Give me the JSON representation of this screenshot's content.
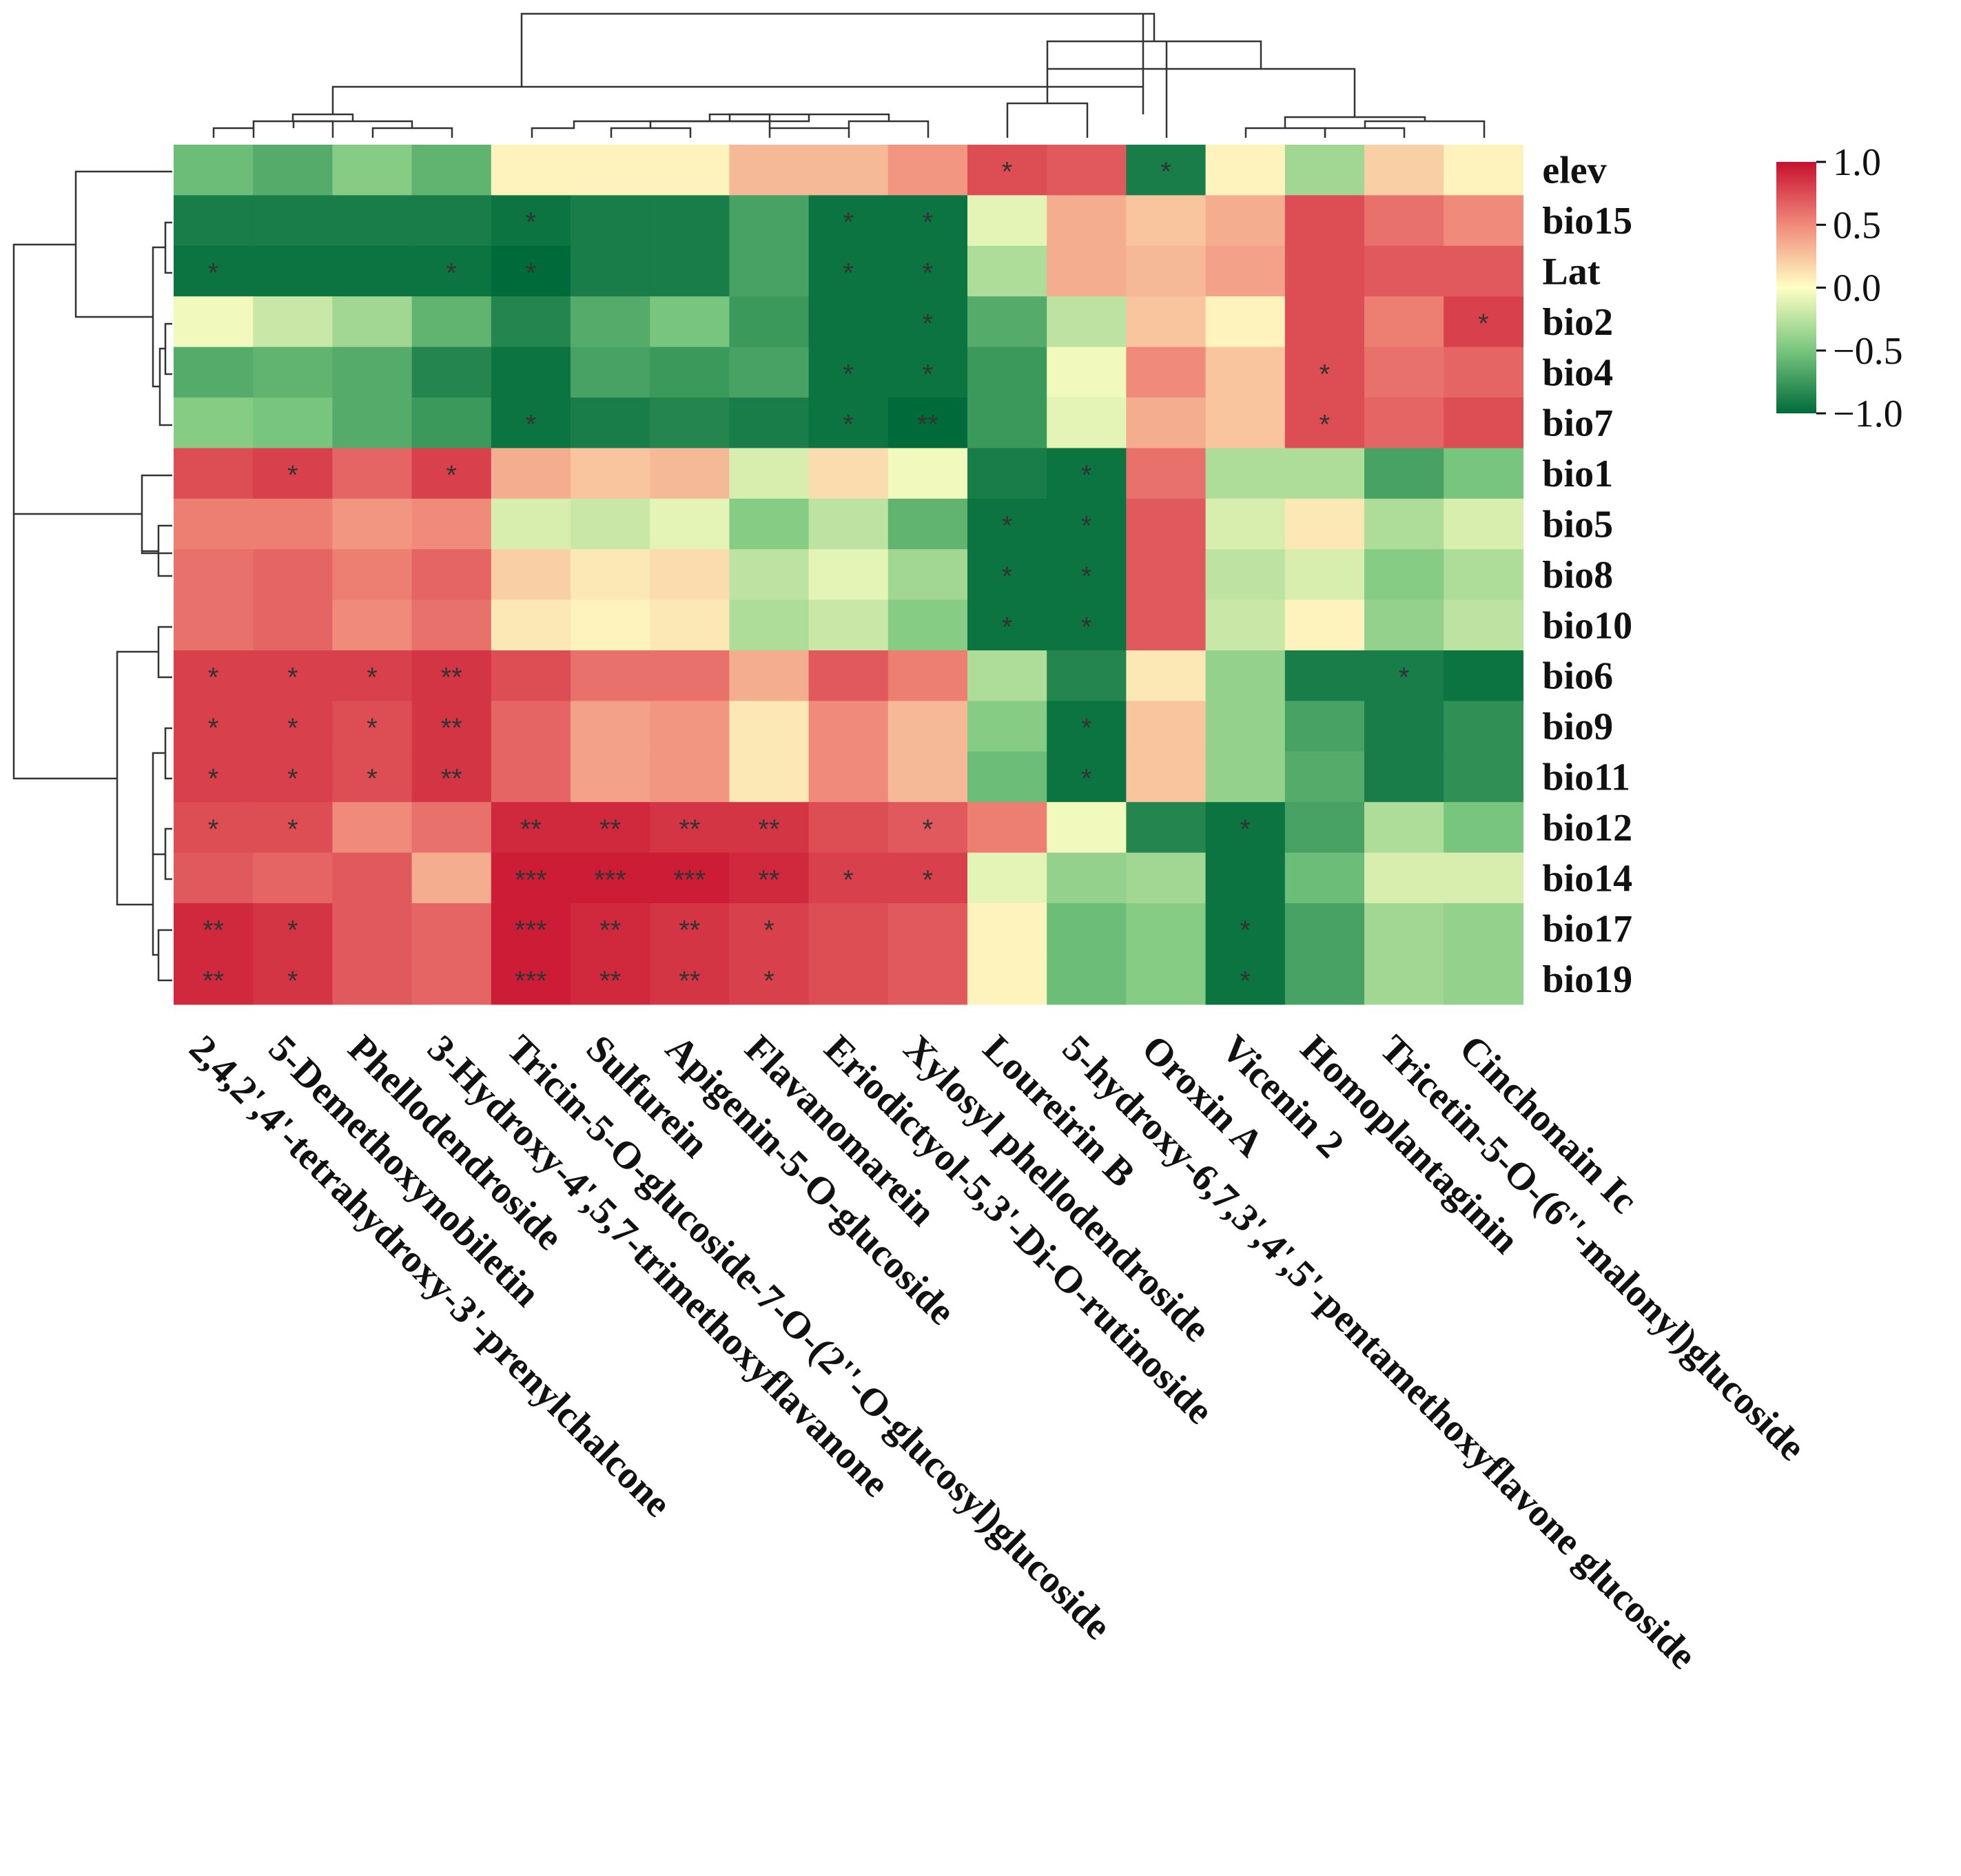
{
  "chart_data": {
    "type": "heatmap",
    "rows": [
      "elev",
      "bio15",
      "Lat",
      "bio2",
      "bio4",
      "bio7",
      "bio1",
      "bio5",
      "bio8",
      "bio10",
      "bio6",
      "bio9",
      "bio11",
      "bio12",
      "bio14",
      "bio17",
      "bio19"
    ],
    "columns": [
      "2,4,2',4'-tetrahydroxy-3'-prenylchalcone",
      "5-Demethoxynobiletin",
      "Phellodendroside",
      "3-Hydroxy-4',5,7-trimethoxyflavanone",
      "Tricin-5-O-glucoside-7-O-(2''-O-glucosyl)glucoside",
      "Sulfurein",
      "Apigenin-5-O-glucoside",
      "Flavanomarein",
      "Eriodictyol-5,3'-Di-O-rutinoside",
      "Xylosyl phellodendroside",
      "Loureirin B",
      "5-hydroxy-6,7,3',4',5'-pentamethoxyflavone glucoside",
      "Oroxin A",
      "Vicenin 2",
      "Homoplantaginin",
      "Tricetin-5-O-(6''-malonyl)glucoside",
      "Cinchonain Ic"
    ],
    "values": [
      [
        -0.55,
        -0.65,
        -0.45,
        -0.6,
        0.05,
        0.05,
        0.05,
        0.3,
        0.3,
        0.45,
        0.75,
        0.7,
        -0.9,
        0.05,
        -0.35,
        0.2,
        0.05
      ],
      [
        -0.9,
        -0.9,
        -0.9,
        -0.9,
        -0.95,
        -0.9,
        -0.9,
        -0.7,
        -0.95,
        -0.95,
        -0.1,
        0.35,
        0.25,
        0.35,
        0.75,
        0.6,
        0.5
      ],
      [
        -0.95,
        -0.95,
        -0.95,
        -0.95,
        -1.0,
        -0.9,
        -0.9,
        -0.7,
        -0.95,
        -0.95,
        -0.3,
        0.35,
        0.3,
        0.4,
        0.75,
        0.7,
        0.7
      ],
      [
        -0.05,
        -0.2,
        -0.35,
        -0.6,
        -0.85,
        -0.65,
        -0.5,
        -0.75,
        -0.95,
        -0.95,
        -0.65,
        -0.25,
        0.25,
        0.05,
        0.75,
        0.55,
        0.8
      ],
      [
        -0.65,
        -0.6,
        -0.65,
        -0.85,
        -0.95,
        -0.7,
        -0.75,
        -0.7,
        -0.95,
        -0.95,
        -0.75,
        -0.05,
        0.5,
        0.25,
        0.75,
        0.6,
        0.65
      ],
      [
        -0.45,
        -0.5,
        -0.65,
        -0.75,
        -0.95,
        -0.9,
        -0.85,
        -0.9,
        -0.95,
        -1.0,
        -0.75,
        -0.1,
        0.35,
        0.25,
        0.75,
        0.65,
        0.75
      ],
      [
        0.75,
        0.8,
        0.65,
        0.8,
        0.35,
        0.25,
        0.3,
        -0.15,
        0.15,
        -0.05,
        -0.9,
        -0.95,
        0.6,
        -0.3,
        -0.3,
        -0.7,
        -0.5
      ],
      [
        0.55,
        0.55,
        0.45,
        0.5,
        -0.15,
        -0.2,
        -0.1,
        -0.45,
        -0.25,
        -0.6,
        -0.95,
        -0.95,
        0.7,
        -0.15,
        0.1,
        -0.3,
        -0.15
      ],
      [
        0.6,
        0.65,
        0.55,
        0.65,
        0.2,
        0.1,
        0.15,
        -0.25,
        -0.1,
        -0.35,
        -0.95,
        -0.95,
        0.7,
        -0.25,
        -0.15,
        -0.45,
        -0.3
      ],
      [
        0.6,
        0.65,
        0.5,
        0.6,
        0.1,
        0.05,
        0.1,
        -0.3,
        -0.2,
        -0.45,
        -0.95,
        -0.95,
        0.7,
        -0.2,
        0.05,
        -0.4,
        -0.25
      ],
      [
        0.8,
        0.8,
        0.8,
        0.85,
        0.75,
        0.6,
        0.6,
        0.35,
        0.7,
        0.55,
        -0.3,
        -0.85,
        0.1,
        -0.4,
        -0.9,
        -0.9,
        -0.95
      ],
      [
        0.8,
        0.8,
        0.75,
        0.85,
        0.65,
        0.4,
        0.45,
        0.1,
        0.5,
        0.3,
        -0.45,
        -0.95,
        0.25,
        -0.4,
        -0.7,
        -0.9,
        -0.8
      ],
      [
        0.8,
        0.8,
        0.75,
        0.85,
        0.65,
        0.4,
        0.45,
        0.1,
        0.5,
        0.3,
        -0.55,
        -0.95,
        0.25,
        -0.4,
        -0.65,
        -0.9,
        -0.8
      ],
      [
        0.75,
        0.75,
        0.5,
        0.6,
        0.9,
        0.9,
        0.85,
        0.85,
        0.75,
        0.7,
        0.55,
        -0.05,
        -0.85,
        -0.95,
        -0.7,
        -0.3,
        -0.5
      ],
      [
        0.7,
        0.65,
        0.7,
        0.35,
        0.95,
        0.95,
        0.95,
        0.9,
        0.8,
        0.8,
        -0.1,
        -0.4,
        -0.35,
        -0.95,
        -0.55,
        -0.15,
        -0.15
      ],
      [
        0.9,
        0.85,
        0.7,
        0.65,
        0.95,
        0.9,
        0.85,
        0.8,
        0.75,
        0.7,
        0.05,
        -0.55,
        -0.45,
        -0.95,
        -0.7,
        -0.35,
        -0.4
      ],
      [
        0.9,
        0.85,
        0.7,
        0.65,
        0.95,
        0.9,
        0.85,
        0.8,
        0.75,
        0.7,
        0.05,
        -0.55,
        -0.45,
        -0.95,
        -0.7,
        -0.35,
        -0.4
      ]
    ],
    "significance": [
      [
        "",
        "",
        "",
        "",
        "",
        "",
        "",
        "",
        "",
        "",
        "*",
        "",
        "*",
        "",
        "",
        "",
        ""
      ],
      [
        "",
        "",
        "",
        "",
        "*",
        "",
        "",
        "",
        "*",
        "*",
        "",
        "",
        "",
        "",
        "",
        "",
        ""
      ],
      [
        "*",
        "",
        "",
        "*",
        "*",
        "",
        "",
        "",
        "*",
        "*",
        "",
        "",
        "",
        "",
        "",
        "",
        ""
      ],
      [
        "",
        "",
        "",
        "",
        "",
        "",
        "",
        "",
        "",
        "*",
        "",
        "",
        "",
        "",
        "",
        "",
        "*"
      ],
      [
        "",
        "",
        "",
        "",
        "",
        "",
        "",
        "",
        "*",
        "*",
        "",
        "",
        "",
        "",
        "*",
        "",
        ""
      ],
      [
        "",
        "",
        "",
        "",
        "*",
        "",
        "",
        "",
        "*",
        "**",
        "",
        "",
        "",
        "",
        "*",
        "",
        ""
      ],
      [
        "",
        "*",
        "",
        "*",
        "",
        "",
        "",
        "",
        "",
        "",
        "",
        "*",
        "",
        "",
        "",
        "",
        ""
      ],
      [
        "",
        "",
        "",
        "",
        "",
        "",
        "",
        "",
        "",
        "",
        "*",
        "*",
        "",
        "",
        "",
        "",
        ""
      ],
      [
        "",
        "",
        "",
        "",
        "",
        "",
        "",
        "",
        "",
        "",
        "*",
        "*",
        "",
        "",
        "",
        "",
        ""
      ],
      [
        "",
        "",
        "",
        "",
        "",
        "",
        "",
        "",
        "",
        "",
        "*",
        "*",
        "",
        "",
        "",
        "",
        ""
      ],
      [
        "*",
        "*",
        "*",
        "**",
        "",
        "",
        "",
        "",
        "",
        "",
        "",
        "",
        "",
        "",
        "",
        "*",
        ""
      ],
      [
        "*",
        "*",
        "*",
        "**",
        "",
        "",
        "",
        "",
        "",
        "",
        "",
        "*",
        "",
        "",
        "",
        "",
        ""
      ],
      [
        "*",
        "*",
        "*",
        "**",
        "",
        "",
        "",
        "",
        "",
        "",
        "",
        "*",
        "",
        "",
        "",
        "",
        ""
      ],
      [
        "*",
        "*",
        "",
        "",
        "**",
        "**",
        "**",
        "**",
        "",
        "*",
        "",
        "",
        "",
        "*",
        "",
        "",
        ""
      ],
      [
        "",
        "",
        "",
        "",
        "***",
        "***",
        "***",
        "**",
        "*",
        "*",
        "",
        "",
        "",
        "",
        "",
        "",
        ""
      ],
      [
        "**",
        "*",
        "",
        "",
        "***",
        "**",
        "**",
        "*",
        "",
        "",
        "",
        "",
        "",
        "*",
        "",
        "",
        ""
      ],
      [
        "**",
        "*",
        "",
        "",
        "***",
        "**",
        "**",
        "*",
        "",
        "",
        "",
        "",
        "",
        "*",
        "",
        "",
        ""
      ]
    ],
    "colorbar": {
      "ticks": [
        "1.0",
        "0.5",
        "0.0",
        "−0.5",
        "−1.0"
      ],
      "range": [
        -1,
        1
      ]
    },
    "colors": {
      "high": "#c8102e",
      "mid": "#ffffc4",
      "low": "#006b3a"
    }
  }
}
